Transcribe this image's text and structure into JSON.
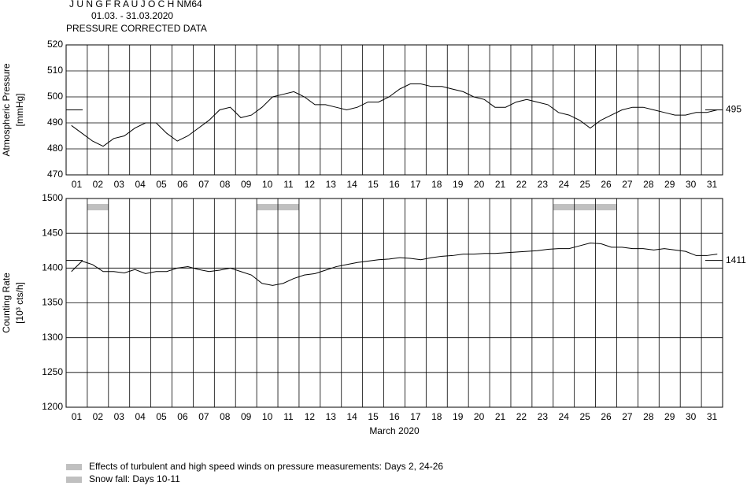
{
  "header": {
    "title": "J U N G F R A U J O C H  NM64",
    "date_range": "01.03. - 31.03.2020",
    "subtitle": "PRESSURE CORRECTED DATA"
  },
  "chart_data": [
    {
      "type": "line",
      "ylabel": [
        "Atmospheric Pressure",
        "[mmHg]"
      ],
      "xlim": [
        1,
        32
      ],
      "xticks": [
        {
          "value": 1,
          "label": "01"
        },
        {
          "value": 2,
          "label": "02"
        },
        {
          "value": 3,
          "label": "03"
        },
        {
          "value": 4,
          "label": "04"
        },
        {
          "value": 5,
          "label": "05"
        },
        {
          "value": 6,
          "label": "06"
        },
        {
          "value": 7,
          "label": "07"
        },
        {
          "value": 8,
          "label": "08"
        },
        {
          "value": 9,
          "label": "09"
        },
        10,
        11,
        12,
        13,
        14,
        15,
        16,
        17,
        18,
        19,
        20,
        21,
        22,
        23,
        24,
        25,
        26,
        27,
        28,
        29,
        30,
        31
      ],
      "ylim": [
        470,
        520
      ],
      "yticks": [
        470,
        480,
        490,
        500,
        510,
        520
      ],
      "grid": true,
      "reference": 495,
      "series": [
        {
          "color": "#000000",
          "x": [
            1.25,
            1.75,
            2.25,
            2.75,
            3.25,
            3.75,
            4.25,
            4.75,
            5.25,
            5.75,
            6.25,
            6.75,
            7.25,
            7.75,
            8.25,
            8.75,
            9.25,
            9.75,
            10.25,
            10.75,
            11.25,
            11.75,
            12.25,
            12.75,
            13.25,
            13.75,
            14.25,
            14.75,
            15.25,
            15.75,
            16.25,
            16.75,
            17.25,
            17.75,
            18.25,
            18.75,
            19.25,
            19.75,
            20.25,
            20.75,
            21.25,
            21.75,
            22.25,
            22.75,
            23.25,
            23.75,
            24.25,
            24.75,
            25.25,
            25.75,
            26.25,
            26.75,
            27.25,
            27.75,
            28.25,
            28.75,
            29.25,
            29.75,
            30.25,
            30.75,
            31.25,
            31.75
          ],
          "values": [
            489,
            486,
            483,
            481,
            484,
            485,
            488,
            490,
            490,
            486,
            483,
            485,
            488,
            491,
            495,
            496,
            492,
            493,
            496,
            500,
            501,
            502,
            500,
            497,
            497,
            496,
            495,
            496,
            498,
            498,
            500,
            503,
            505,
            505,
            504,
            504,
            503,
            502,
            500,
            499,
            496,
            496,
            498,
            499,
            498,
            497,
            494,
            493,
            491,
            488,
            491,
            493,
            495,
            496,
            496,
            495,
            494,
            493,
            493,
            494,
            494,
            495
          ]
        }
      ]
    },
    {
      "type": "line",
      "ylabel": [
        "Counting Rate",
        "[10³ cts/h]"
      ],
      "xlabel": "March 2020",
      "xlim": [
        1,
        32
      ],
      "xticks": [
        {
          "value": 1,
          "label": "01"
        },
        {
          "value": 2,
          "label": "02"
        },
        {
          "value": 3,
          "label": "03"
        },
        {
          "value": 4,
          "label": "04"
        },
        {
          "value": 5,
          "label": "05"
        },
        {
          "value": 6,
          "label": "06"
        },
        {
          "value": 7,
          "label": "07"
        },
        {
          "value": 8,
          "label": "08"
        },
        {
          "value": 9,
          "label": "09"
        },
        10,
        11,
        12,
        13,
        14,
        15,
        16,
        17,
        18,
        19,
        20,
        21,
        22,
        23,
        24,
        25,
        26,
        27,
        28,
        29,
        30,
        31
      ],
      "ylim": [
        1200,
        1500
      ],
      "yticks": [
        1200,
        1250,
        1300,
        1350,
        1400,
        1450,
        1500
      ],
      "grid": true,
      "reference": 1411,
      "bands": [
        {
          "name": "Effects of turbulent and high speed winds on pressure measurements: Days 2, 24-26",
          "color": "#c0c0c0",
          "spans": [
            [
              2,
              3
            ],
            [
              24,
              27
            ]
          ]
        },
        {
          "name": "Snow fall: Days 10-11",
          "color": "#c0c0c0",
          "spans": [
            [
              10,
              12
            ]
          ]
        }
      ],
      "series": [
        {
          "color": "#000000",
          "x": [
            1.25,
            1.75,
            2.25,
            2.75,
            3.25,
            3.75,
            4.25,
            4.75,
            5.25,
            5.75,
            6.25,
            6.75,
            7.25,
            7.75,
            8.25,
            8.75,
            9.25,
            9.75,
            10.25,
            10.75,
            11.25,
            11.75,
            12.25,
            12.75,
            13.25,
            13.75,
            14.25,
            14.75,
            15.25,
            15.75,
            16.25,
            16.75,
            17.25,
            17.75,
            18.25,
            18.75,
            19.25,
            19.75,
            20.25,
            20.75,
            21.25,
            21.75,
            22.25,
            22.75,
            23.25,
            23.75,
            24.25,
            24.75,
            25.25,
            25.75,
            26.25,
            26.75,
            27.25,
            27.75,
            28.25,
            28.75,
            29.25,
            29.75,
            30.25,
            30.75,
            31.25,
            31.75
          ],
          "values": [
            1395,
            1410,
            1405,
            1395,
            1395,
            1393,
            1398,
            1392,
            1395,
            1395,
            1400,
            1402,
            1398,
            1395,
            1397,
            1400,
            1395,
            1390,
            1378,
            1375,
            1378,
            1385,
            1390,
            1392,
            1397,
            1402,
            1405,
            1408,
            1410,
            1412,
            1413,
            1415,
            1414,
            1412,
            1415,
            1417,
            1418,
            1420,
            1420,
            1421,
            1421,
            1422,
            1423,
            1424,
            1425,
            1427,
            1428,
            1428,
            1432,
            1436,
            1435,
            1430,
            1430,
            1428,
            1428,
            1426,
            1428,
            1426,
            1424,
            1418,
            1418,
            1420
          ]
        }
      ]
    }
  ]
}
